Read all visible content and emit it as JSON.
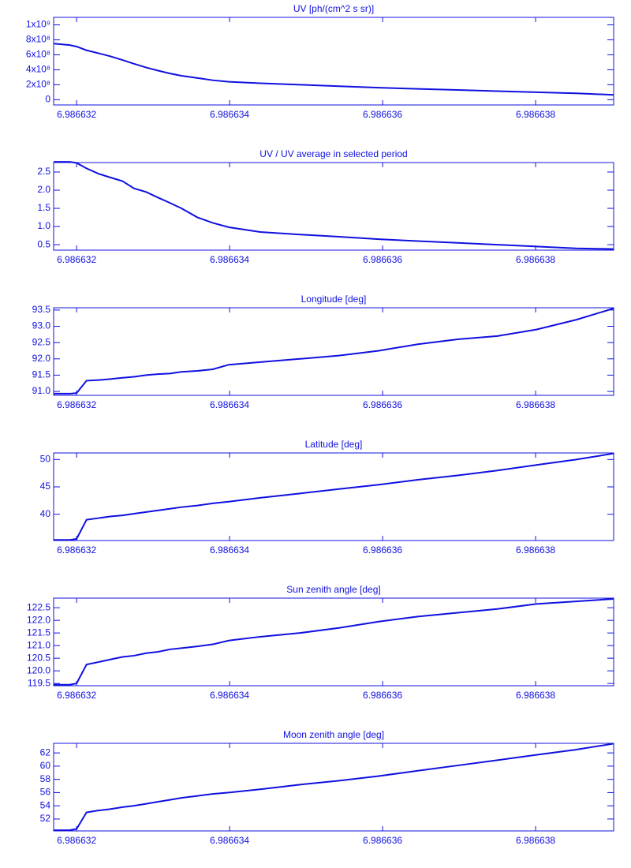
{
  "chart_data": [
    {
      "type": "line",
      "title": "UV [ph/(cm^2 s sr)]",
      "color": "#1010e0",
      "x": [
        6.9866317,
        6.98663191,
        6.986632,
        6.98663213,
        6.98663229,
        6.98663244,
        6.9866326,
        6.98663275,
        6.98663291,
        6.98663306,
        6.98663322,
        6.98663337,
        6.98663358,
        6.98663378,
        6.98663399,
        6.9866344,
        6.98663492,
        6.98663543,
        6.98663595,
        6.98663646,
        6.98663698,
        6.9866375,
        6.98663801,
        6.98663853,
        6.98663902
      ],
      "values": [
        750000000,
        730000000,
        710000000,
        660000000,
        620000000,
        580000000,
        530000000,
        480000000,
        430000000,
        390000000,
        350000000,
        320000000,
        290000000,
        260000000,
        240000000,
        220000000,
        200000000,
        180000000,
        160000000,
        145000000,
        130000000,
        115000000,
        100000000,
        85000000,
        65000000
      ],
      "xlim": [
        6.9866317,
        6.98663902
      ],
      "xticks": [
        6.986632,
        6.986634,
        6.986636,
        6.986638
      ],
      "ylim": [
        -70000000,
        1100000000
      ],
      "yticks": [
        0,
        {
          "value": 200000000,
          "label": "2x10⁸"
        },
        {
          "value": 400000000,
          "label": "4x10⁸"
        },
        {
          "value": 600000000,
          "label": "6x10⁸"
        },
        {
          "value": 800000000,
          "label": "8x10⁸"
        },
        {
          "value": 1000000000,
          "label": "1x10⁹"
        }
      ]
    },
    {
      "type": "line",
      "title": "UV / UV average in selected period",
      "color": "#1010e0",
      "x": [
        6.9866317,
        6.98663191,
        6.986632,
        6.98663213,
        6.98663229,
        6.98663244,
        6.9866326,
        6.98663275,
        6.98663291,
        6.98663306,
        6.98663322,
        6.98663337,
        6.98663358,
        6.98663378,
        6.98663399,
        6.9866344,
        6.98663492,
        6.98663543,
        6.98663595,
        6.98663646,
        6.98663698,
        6.9866375,
        6.98663801,
        6.98663853,
        6.98663902
      ],
      "values": [
        2.78,
        2.78,
        2.75,
        2.6,
        2.45,
        2.35,
        2.25,
        2.05,
        1.95,
        1.8,
        1.65,
        1.5,
        1.25,
        1.1,
        0.98,
        0.85,
        0.78,
        0.72,
        0.65,
        0.6,
        0.55,
        0.5,
        0.45,
        0.4,
        0.38
      ],
      "xlim": [
        6.9866317,
        6.98663902
      ],
      "xticks": [
        6.986632,
        6.986634,
        6.986636,
        6.986638
      ],
      "ylim": [
        0.35,
        2.76
      ],
      "yticks": [
        0.5,
        {
          "value": 1,
          "label": "1.0"
        },
        1.5,
        {
          "value": 2,
          "label": "2.0"
        },
        2.5
      ]
    },
    {
      "type": "line",
      "title": "Longitude [deg]",
      "color": "#1010e0",
      "x": [
        6.9866317,
        6.98663191,
        6.986632,
        6.98663213,
        6.98663229,
        6.98663244,
        6.9866326,
        6.98663275,
        6.98663291,
        6.98663306,
        6.98663322,
        6.98663337,
        6.98663358,
        6.98663378,
        6.98663399,
        6.9866344,
        6.98663492,
        6.98663543,
        6.98663595,
        6.98663646,
        6.98663698,
        6.9866375,
        6.98663801,
        6.98663853,
        6.98663902
      ],
      "values": [
        90.93,
        90.93,
        90.95,
        91.33,
        91.35,
        91.38,
        91.42,
        91.45,
        91.5,
        91.53,
        91.55,
        91.6,
        91.63,
        91.68,
        91.82,
        91.9,
        92.0,
        92.1,
        92.25,
        92.45,
        92.6,
        92.7,
        92.9,
        93.2,
        93.55
      ],
      "xlim": [
        6.9866317,
        6.98663902
      ],
      "xticks": [
        6.986632,
        6.986634,
        6.986636,
        6.986638
      ],
      "ylim": [
        90.88,
        93.57
      ],
      "yticks": [
        {
          "value": 91,
          "label": "91.0"
        },
        91.5,
        {
          "value": 92,
          "label": "92.0"
        },
        92.5,
        {
          "value": 93,
          "label": "93.0"
        },
        93.5
      ]
    },
    {
      "type": "line",
      "title": "Latitude [deg]",
      "color": "#1010e0",
      "x": [
        6.9866317,
        6.98663191,
        6.986632,
        6.98663213,
        6.98663229,
        6.98663244,
        6.9866326,
        6.98663275,
        6.98663291,
        6.98663306,
        6.98663322,
        6.98663337,
        6.98663358,
        6.98663378,
        6.98663399,
        6.9866344,
        6.98663492,
        6.98663543,
        6.98663595,
        6.98663646,
        6.98663698,
        6.9866375,
        6.98663801,
        6.98663853,
        6.98663902
      ],
      "values": [
        35.3,
        35.3,
        35.5,
        39,
        39.3,
        39.6,
        39.8,
        40.1,
        40.4,
        40.7,
        41,
        41.3,
        41.6,
        42,
        42.3,
        43,
        43.8,
        44.6,
        45.4,
        46.3,
        47.1,
        48,
        49,
        50,
        51.1
      ],
      "xlim": [
        6.9866317,
        6.98663902
      ],
      "xticks": [
        6.986632,
        6.986634,
        6.986636,
        6.986638
      ],
      "ylim": [
        35.2,
        51.2
      ],
      "yticks": [
        40,
        45,
        50
      ]
    },
    {
      "type": "line",
      "title": "Sun zenith angle [deg]",
      "color": "#1010e0",
      "x": [
        6.9866317,
        6.98663191,
        6.986632,
        6.98663213,
        6.98663229,
        6.98663244,
        6.9866326,
        6.98663275,
        6.98663291,
        6.98663306,
        6.98663322,
        6.98663337,
        6.98663358,
        6.98663378,
        6.98663399,
        6.9866344,
        6.98663492,
        6.98663543,
        6.98663595,
        6.98663646,
        6.98663698,
        6.9866375,
        6.98663801,
        6.98663853,
        6.98663902
      ],
      "values": [
        119.45,
        119.45,
        119.5,
        120.25,
        120.35,
        120.45,
        120.55,
        120.6,
        120.7,
        120.75,
        120.85,
        120.9,
        120.97,
        121.05,
        121.2,
        121.35,
        121.5,
        121.7,
        121.95,
        122.15,
        122.3,
        122.45,
        122.65,
        122.75,
        122.85
      ],
      "xlim": [
        6.9866317,
        6.98663902
      ],
      "xticks": [
        6.986632,
        6.986634,
        6.986636,
        6.986638
      ],
      "ylim": [
        119.41,
        122.88
      ],
      "yticks": [
        119.5,
        {
          "value": 120,
          "label": "120.0"
        },
        120.5,
        {
          "value": 121,
          "label": "121.0"
        },
        121.5,
        {
          "value": 122,
          "label": "122.0"
        },
        122.5
      ]
    },
    {
      "type": "line",
      "title": "Moon zenith angle [deg]",
      "color": "#1010e0",
      "x": [
        6.9866317,
        6.98663191,
        6.986632,
        6.98663213,
        6.98663229,
        6.98663244,
        6.9866326,
        6.98663275,
        6.98663291,
        6.98663306,
        6.98663322,
        6.98663337,
        6.98663358,
        6.98663378,
        6.98663399,
        6.9866344,
        6.98663492,
        6.98663543,
        6.98663595,
        6.98663646,
        6.98663698,
        6.9866375,
        6.98663801,
        6.98663853,
        6.98663902
      ],
      "values": [
        50.3,
        50.3,
        50.5,
        53,
        53.3,
        53.5,
        53.8,
        54,
        54.3,
        54.6,
        54.9,
        55.2,
        55.5,
        55.8,
        56,
        56.5,
        57.2,
        57.8,
        58.5,
        59.3,
        60.1,
        60.9,
        61.7,
        62.5,
        63.4
      ],
      "xlim": [
        6.9866317,
        6.98663902
      ],
      "xticks": [
        6.986632,
        6.986634,
        6.986636,
        6.986638
      ],
      "ylim": [
        50.2,
        63.45
      ],
      "yticks": [
        52,
        54,
        56,
        58,
        60,
        62
      ]
    }
  ]
}
